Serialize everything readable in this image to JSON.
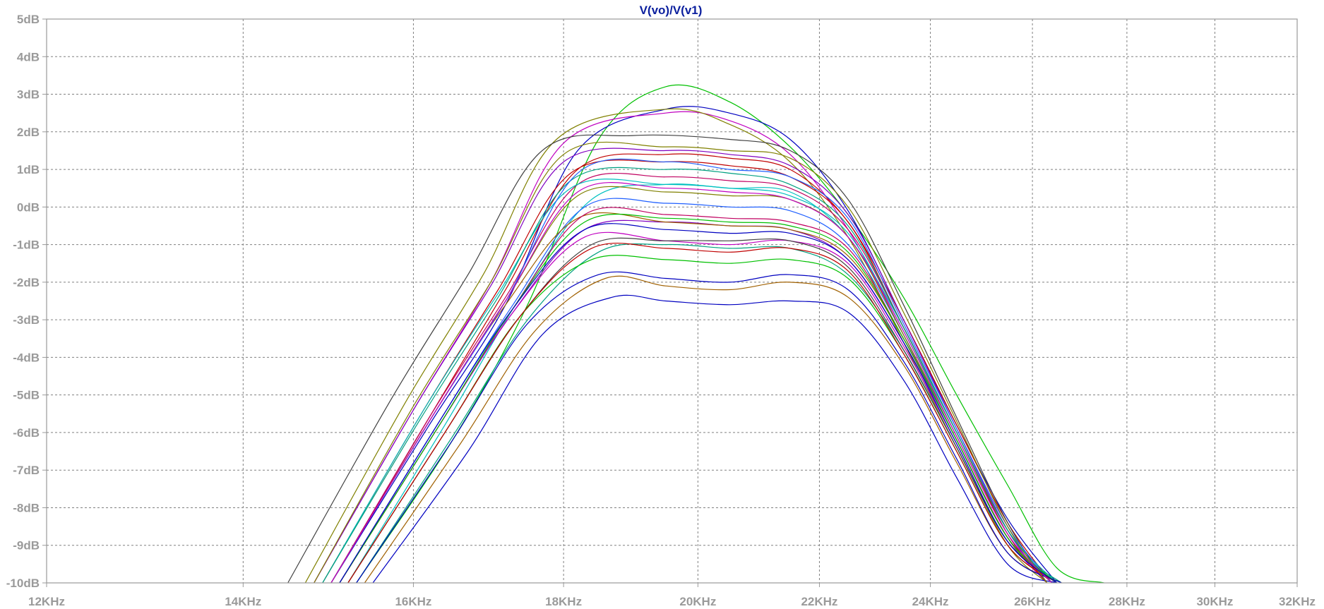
{
  "chart_data": {
    "type": "line",
    "title": "V(vo)/V(v1)",
    "xlabel": "",
    "ylabel": "",
    "x_scale": "log",
    "xlim_hz": [
      12000,
      32000
    ],
    "ylim_db": [
      -10,
      5
    ],
    "x_ticks": [
      {
        "value": 12000,
        "label": "12KHz"
      },
      {
        "value": 14000,
        "label": "14KHz"
      },
      {
        "value": 16000,
        "label": "16KHz"
      },
      {
        "value": 18000,
        "label": "18KHz"
      },
      {
        "value": 20000,
        "label": "20KHz"
      },
      {
        "value": 22000,
        "label": "22KHz"
      },
      {
        "value": 24000,
        "label": "24KHz"
      },
      {
        "value": 26000,
        "label": "26KHz"
      },
      {
        "value": 28000,
        "label": "28KHz"
      },
      {
        "value": 30000,
        "label": "30KHz"
      },
      {
        "value": 32000,
        "label": "32KHz"
      }
    ],
    "y_ticks": [
      {
        "value": 5,
        "label": "5dB"
      },
      {
        "value": 4,
        "label": "4dB"
      },
      {
        "value": 3,
        "label": "3dB"
      },
      {
        "value": 2,
        "label": "2dB"
      },
      {
        "value": 1,
        "label": "1dB"
      },
      {
        "value": 0,
        "label": "0dB"
      },
      {
        "value": -1,
        "label": "-1dB"
      },
      {
        "value": -2,
        "label": "-2dB"
      },
      {
        "value": -3,
        "label": "-3dB"
      },
      {
        "value": -4,
        "label": "-4dB"
      },
      {
        "value": -5,
        "label": "-5dB"
      },
      {
        "value": -6,
        "label": "-6dB"
      },
      {
        "value": -7,
        "label": "-7dB"
      },
      {
        "value": -8,
        "label": "-8dB"
      },
      {
        "value": -9,
        "label": "-9dB"
      },
      {
        "value": -10,
        "label": "-10dB"
      }
    ],
    "grid": true,
    "legend": "none",
    "title_color": "#0b1f9e",
    "series_colors": [
      "#00c000",
      "#0000c0",
      "#c00000",
      "#c000c0",
      "#808000",
      "#00c0c0",
      "#404040",
      "#8000c0",
      "#00a080",
      "#a06000",
      "#c00060",
      "#2060ff"
    ],
    "series": [
      {
        "color": "#00c000",
        "x": [
          15300,
          16500,
          17500,
          18500,
          19500,
          20500,
          21500,
          22500,
          23500,
          24500,
          25500,
          26500,
          27500
        ],
        "y": [
          -10,
          -6.2,
          -2.6,
          1.8,
          3.2,
          2.8,
          1.6,
          -0.2,
          -2.4,
          -5.0,
          -7.4,
          -9.6,
          -10
        ]
      },
      {
        "color": "#0000c0",
        "x": [
          15000,
          16200,
          17200,
          18200,
          19500,
          20500,
          21500,
          22500,
          23500,
          24500,
          25500,
          26500
        ],
        "y": [
          -10,
          -5.8,
          -2.6,
          1.5,
          2.6,
          2.5,
          1.8,
          -0.1,
          -3.0,
          -5.8,
          -8.3,
          -10
        ]
      },
      {
        "color": "#c000c0",
        "x": [
          14800,
          16000,
          17000,
          18000,
          19500,
          20500,
          21500,
          22500,
          23500,
          24500,
          25500,
          26300
        ],
        "y": [
          -10,
          -5.4,
          -2.0,
          1.7,
          2.5,
          2.3,
          1.4,
          -0.6,
          -3.4,
          -6.2,
          -8.8,
          -10
        ]
      },
      {
        "color": "#808000",
        "x": [
          14700,
          15900,
          16900,
          17900,
          19500,
          20500,
          21500,
          22500,
          23500,
          24500,
          25500,
          26300
        ],
        "y": [
          -10,
          -5.2,
          -1.8,
          1.8,
          2.6,
          2.2,
          1.2,
          -0.8,
          -3.6,
          -6.4,
          -9.0,
          -10
        ]
      },
      {
        "color": "#c00000",
        "x": [
          15000,
          16200,
          17200,
          18200,
          19500,
          20500,
          21500,
          22500,
          23500,
          24500,
          25500,
          26400
        ],
        "y": [
          -10,
          -5.6,
          -2.2,
          1.0,
          1.4,
          1.3,
          1.0,
          -0.4,
          -3.0,
          -5.8,
          -8.4,
          -10
        ]
      },
      {
        "color": "#00c0c0",
        "x": [
          15200,
          16400,
          17400,
          18400,
          19500,
          20500,
          21500,
          22500,
          23500,
          24500,
          25500,
          26500
        ],
        "y": [
          -10,
          -5.8,
          -2.4,
          0.2,
          0.6,
          0.5,
          0.4,
          -0.8,
          -3.2,
          -6.0,
          -8.6,
          -10
        ]
      },
      {
        "color": "#404040",
        "x": [
          14500,
          15700,
          16700,
          17700,
          19000,
          20500,
          21500,
          22500,
          23500,
          24500,
          25500,
          26300
        ],
        "y": [
          -10,
          -5.2,
          -1.8,
          1.5,
          1.9,
          1.8,
          1.5,
          0.2,
          -2.6,
          -5.6,
          -8.4,
          -10
        ]
      },
      {
        "color": "#8000c0",
        "x": [
          15100,
          16300,
          17300,
          18300,
          19500,
          20500,
          21500,
          22500,
          23500,
          24500,
          25500,
          26400
        ],
        "y": [
          -10,
          -5.9,
          -2.8,
          -0.6,
          -0.4,
          -0.5,
          -0.6,
          -1.4,
          -3.6,
          -6.2,
          -8.8,
          -10
        ]
      },
      {
        "color": "#00a080",
        "x": [
          15300,
          16500,
          17500,
          18500,
          19500,
          20500,
          21500,
          22500,
          23500,
          24500,
          25500,
          26600
        ],
        "y": [
          -10,
          -6.1,
          -3.0,
          -1.2,
          -1.0,
          -1.1,
          -1.1,
          -1.8,
          -3.8,
          -6.4,
          -8.9,
          -10
        ]
      },
      {
        "color": "#a06000",
        "x": [
          15400,
          16600,
          17600,
          18600,
          19500,
          20500,
          21500,
          22500,
          23500,
          24500,
          25500,
          26600
        ],
        "y": [
          -10,
          -6.3,
          -3.3,
          -1.9,
          -2.1,
          -2.2,
          -2.0,
          -2.4,
          -4.2,
          -6.8,
          -9.2,
          -10
        ]
      },
      {
        "color": "#0000c0",
        "x": [
          15500,
          16700,
          17700,
          18700,
          19500,
          20500,
          21500,
          22500,
          23500,
          24500,
          25500,
          26500
        ],
        "y": [
          -10,
          -6.5,
          -3.4,
          -2.4,
          -2.5,
          -2.6,
          -2.5,
          -2.8,
          -4.6,
          -7.2,
          -9.5,
          -10
        ]
      },
      {
        "color": "#c00060",
        "x": [
          15000,
          16200,
          17200,
          18200,
          19500,
          20500,
          21500,
          22500,
          23500,
          24500,
          25500,
          26400
        ],
        "y": [
          -10,
          -5.6,
          -2.4,
          0.6,
          0.8,
          0.7,
          0.5,
          -0.6,
          -3.2,
          -6.0,
          -8.6,
          -10
        ]
      },
      {
        "color": "#2060ff",
        "x": [
          15100,
          16300,
          17300,
          18300,
          19500,
          20500,
          21500,
          22500,
          23500,
          24500,
          25500,
          26500
        ],
        "y": [
          -10,
          -5.8,
          -2.6,
          0.0,
          0.1,
          0.0,
          -0.1,
          -1.0,
          -3.4,
          -6.2,
          -8.8,
          -10
        ]
      },
      {
        "color": "#00c000",
        "x": [
          15200,
          16400,
          17400,
          18400,
          19500,
          20500,
          21500,
          22500,
          23500,
          24500,
          25500,
          26500
        ],
        "y": [
          -10,
          -6.0,
          -2.9,
          -1.4,
          -1.4,
          -1.5,
          -1.4,
          -1.9,
          -3.9,
          -6.5,
          -9.0,
          -10
        ]
      },
      {
        "color": "#c00000",
        "x": [
          14900,
          16100,
          17100,
          18100,
          19500,
          20500,
          21500,
          22500,
          23500,
          24500,
          25500,
          26300
        ],
        "y": [
          -10,
          -5.5,
          -2.2,
          0.9,
          1.2,
          1.1,
          0.8,
          -0.4,
          -3.2,
          -6.0,
          -8.7,
          -10
        ]
      },
      {
        "color": "#808000",
        "x": [
          15000,
          16200,
          17200,
          18200,
          19500,
          20500,
          21500,
          22500,
          23500,
          24500,
          25500,
          26400
        ],
        "y": [
          -10,
          -5.7,
          -2.5,
          0.3,
          0.4,
          0.3,
          0.2,
          -0.8,
          -3.4,
          -6.1,
          -8.7,
          -10
        ]
      },
      {
        "color": "#c000c0",
        "x": [
          15100,
          16300,
          17300,
          18300,
          19500,
          20500,
          21500,
          22500,
          23500,
          24500,
          25500,
          26500
        ],
        "y": [
          -10,
          -5.9,
          -2.8,
          -0.8,
          -0.9,
          -1.0,
          -0.9,
          -1.5,
          -3.7,
          -6.3,
          -8.9,
          -10
        ]
      },
      {
        "color": "#00c0c0",
        "x": [
          14900,
          16100,
          17100,
          18100,
          19500,
          20500,
          21500,
          22500,
          23500,
          24500,
          25500,
          26400
        ],
        "y": [
          -10,
          -5.5,
          -2.3,
          0.5,
          0.6,
          0.5,
          0.3,
          -0.7,
          -3.3,
          -6.0,
          -8.6,
          -10
        ]
      },
      {
        "color": "#8000c0",
        "x": [
          14800,
          16000,
          17000,
          18000,
          19500,
          20500,
          21500,
          22500,
          23500,
          24500,
          25500,
          26300
        ],
        "y": [
          -10,
          -5.4,
          -2.1,
          1.2,
          1.5,
          1.4,
          1.1,
          -0.2,
          -3.0,
          -5.9,
          -8.6,
          -10
        ]
      },
      {
        "color": "#a06000",
        "x": [
          15000,
          16200,
          17200,
          18200,
          19500,
          20500,
          21500,
          22500,
          23500,
          24500,
          25500,
          26400
        ],
        "y": [
          -10,
          -5.7,
          -2.6,
          -0.3,
          -0.4,
          -0.5,
          -0.6,
          -1.3,
          -3.5,
          -6.2,
          -8.8,
          -10
        ]
      },
      {
        "color": "#0000c0",
        "x": [
          15300,
          16500,
          17500,
          18500,
          19500,
          20500,
          21500,
          22500,
          23500,
          24500,
          25500,
          26600
        ],
        "y": [
          -10,
          -6.2,
          -3.1,
          -1.8,
          -1.9,
          -2.0,
          -1.8,
          -2.2,
          -4.1,
          -6.7,
          -9.2,
          -10
        ]
      },
      {
        "color": "#404040",
        "x": [
          15200,
          16400,
          17400,
          18400,
          19500,
          20500,
          21500,
          22500,
          23500,
          24500,
          25500,
          26500
        ],
        "y": [
          -10,
          -6.0,
          -2.9,
          -1.0,
          -0.9,
          -0.9,
          -0.9,
          -1.6,
          -3.8,
          -6.4,
          -8.9,
          -10
        ]
      },
      {
        "color": "#00a080",
        "x": [
          14900,
          16100,
          17100,
          18100,
          19500,
          20500,
          21500,
          22500,
          23500,
          24500,
          25500,
          26400
        ],
        "y": [
          -10,
          -5.6,
          -2.4,
          0.7,
          1.0,
          0.9,
          0.6,
          -0.5,
          -3.2,
          -6.0,
          -8.6,
          -10
        ]
      },
      {
        "color": "#c00060",
        "x": [
          15100,
          16300,
          17300,
          18300,
          19500,
          20500,
          21500,
          22500,
          23500,
          24500,
          25500,
          26500
        ],
        "y": [
          -10,
          -5.9,
          -2.7,
          -0.2,
          -0.2,
          -0.3,
          -0.4,
          -1.1,
          -3.5,
          -6.2,
          -8.8,
          -10
        ]
      },
      {
        "color": "#2060ff",
        "x": [
          15000,
          16200,
          17200,
          18200,
          19500,
          20500,
          21500,
          22500,
          23500,
          24500,
          25500,
          26400
        ],
        "y": [
          -10,
          -5.7,
          -2.5,
          0.9,
          1.2,
          1.0,
          0.8,
          -0.3,
          -3.1,
          -5.9,
          -8.5,
          -10
        ]
      },
      {
        "color": "#c00000",
        "x": [
          15200,
          16400,
          17400,
          18400,
          19500,
          20500,
          21500,
          22500,
          23500,
          24500,
          25500,
          26500
        ],
        "y": [
          -10,
          -6.0,
          -2.9,
          -1.1,
          -1.1,
          -1.2,
          -1.1,
          -1.7,
          -3.9,
          -6.5,
          -9.0,
          -10
        ]
      },
      {
        "color": "#808000",
        "x": [
          14800,
          16000,
          17000,
          18000,
          19500,
          20500,
          21500,
          22500,
          23500,
          24500,
          25500,
          26300
        ],
        "y": [
          -10,
          -5.3,
          -2.0,
          1.4,
          1.6,
          1.5,
          1.3,
          0.0,
          -2.8,
          -5.7,
          -8.5,
          -10
        ]
      },
      {
        "color": "#00c000",
        "x": [
          15100,
          16300,
          17300,
          18300,
          19500,
          20500,
          21500,
          22500,
          23500,
          24500,
          25500,
          26500
        ],
        "y": [
          -10,
          -5.9,
          -2.7,
          -0.4,
          -0.3,
          -0.4,
          -0.5,
          -1.2,
          -3.5,
          -6.2,
          -8.8,
          -10
        ]
      },
      {
        "color": "#c000c0",
        "x": [
          15000,
          16200,
          17200,
          18200,
          19500,
          20500,
          21500,
          22500,
          23500,
          24500,
          25500,
          26400
        ],
        "y": [
          -10,
          -5.7,
          -2.5,
          0.4,
          0.5,
          0.4,
          0.2,
          -0.8,
          -3.3,
          -6.1,
          -8.7,
          -10
        ]
      },
      {
        "color": "#0000c0",
        "x": [
          15100,
          16300,
          17300,
          18300,
          19500,
          20500,
          21500,
          22500,
          23500,
          24500,
          25500,
          26500
        ],
        "y": [
          -10,
          -5.8,
          -2.7,
          -0.6,
          -0.6,
          -0.7,
          -0.7,
          -1.4,
          -3.6,
          -6.3,
          -8.9,
          -10
        ]
      }
    ]
  }
}
